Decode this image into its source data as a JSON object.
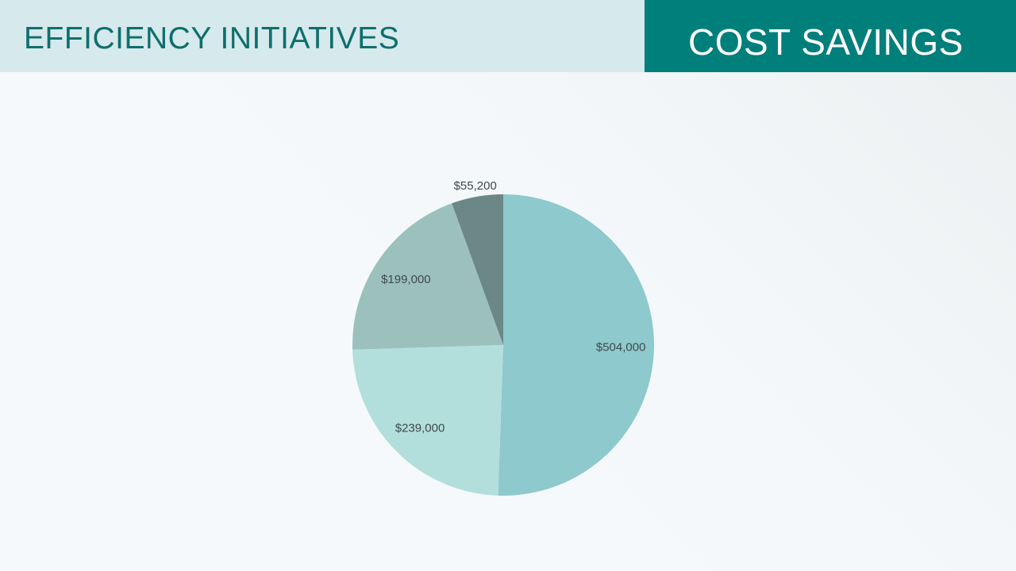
{
  "header": {
    "left_title": "EFFICIENCY INITIATIVES",
    "right_title": "COST SAVINGS"
  },
  "colors": {
    "header_left_bg": "#d6e9ec",
    "header_right_bg": "#007f7b",
    "slice_colors": [
      "#8dc9cd",
      "#b2dfdc",
      "#9cc1bd",
      "#6c8886"
    ]
  },
  "chart_data": {
    "type": "pie",
    "start_angle": "12 o'clock",
    "direction": "clockwise",
    "labels": [
      "$504,000",
      "$239,000",
      "$199,000",
      "$55,200"
    ],
    "values": [
      504000,
      239000,
      199000,
      55200
    ],
    "legend": "none"
  }
}
